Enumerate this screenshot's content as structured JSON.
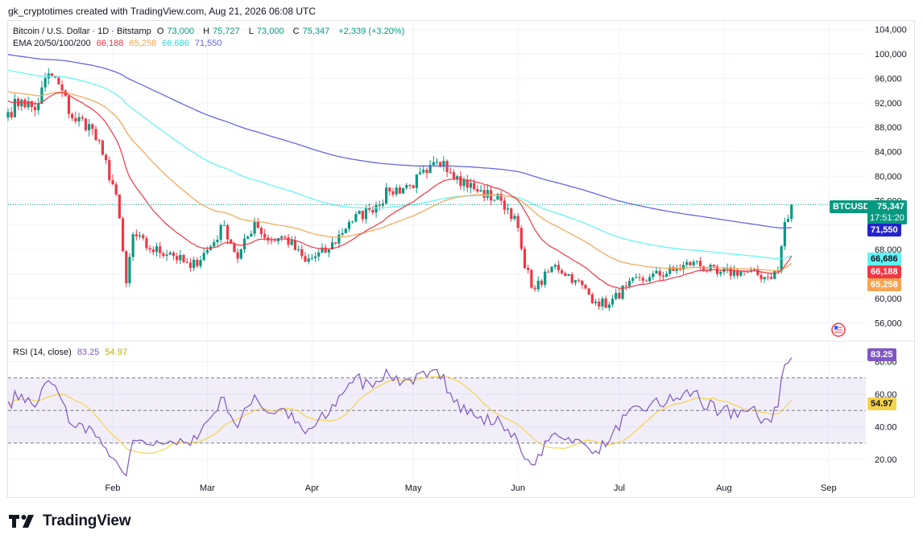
{
  "header": "gk_cryptotimes created with TradingView.com, Aug 21, 2026 06:08 UTC",
  "brand": "TradingView",
  "legend": {
    "symbol": "Bitcoin / U.S. Dollar · 1D · Bitstamp",
    "open_key": "O",
    "open": "73,000",
    "high_key": "H",
    "high": "75,727",
    "low_key": "L",
    "low": "73,000",
    "close_key": "C",
    "close": "75,347",
    "change": "+2,339 (+3.20%)",
    "ema_label": "EMA 20/50/100/200",
    "ema20": "66,188",
    "ema50": "65,258",
    "ema100": "66,686",
    "ema200": "71,550",
    "rsi_label": "RSI (14, close)",
    "rsi": "83.25",
    "rsi_ma": "54.97"
  },
  "tags": {
    "symbol": "BTCUSD",
    "price": "75,347",
    "countdown": "17:51:20",
    "ema200": "71,550",
    "ema100": "66,686",
    "ema20": "66,188",
    "ema50": "65,258",
    "rsi": "83.25",
    "rsi_ma": "54.97"
  },
  "colors": {
    "up": "#089981",
    "down": "#f23645",
    "ema20": "#f23645",
    "ema50": "#f7a350",
    "ema100": "#5ef4f4",
    "ema200": "#6666e8",
    "rsi": "#7e57c2",
    "rsi_ma": "#f5d34b",
    "grid": "#f0f3fa",
    "text": "#131722"
  },
  "chart_data": [
    {
      "type": "candlestick",
      "series_names": [
        "EMA 20",
        "EMA 50",
        "EMA 100",
        "EMA 200"
      ],
      "price_ticks": [
        "104,000",
        "100,000",
        "96,000",
        "92,000",
        "88,000",
        "84,000",
        "80,000",
        "76,000",
        "72,000",
        "68,000",
        "64,000",
        "60,000",
        "56,000"
      ],
      "ylim": [
        54000,
        105000
      ],
      "x_ticks": [
        "Feb",
        "Mar",
        "Apr",
        "May",
        "Jun",
        "Jul",
        "Aug",
        "Sep"
      ],
      "last_close": 75347,
      "anchors": [
        {
          "d": "2026-01-01",
          "c": 90500
        },
        {
          "d": "2026-01-05",
          "c": 92500
        },
        {
          "d": "2026-01-09",
          "c": 90800
        },
        {
          "d": "2026-01-13",
          "c": 96800
        },
        {
          "d": "2026-01-16",
          "c": 95000
        },
        {
          "d": "2026-01-20",
          "c": 89500
        },
        {
          "d": "2026-01-25",
          "c": 88500
        },
        {
          "d": "2026-01-29",
          "c": 83500
        },
        {
          "d": "2026-02-02",
          "c": 77000
        },
        {
          "d": "2026-02-05",
          "c": 62500
        },
        {
          "d": "2026-02-07",
          "c": 70500
        },
        {
          "d": "2026-02-12",
          "c": 68000
        },
        {
          "d": "2026-02-18",
          "c": 67500
        },
        {
          "d": "2026-02-24",
          "c": 65000
        },
        {
          "d": "2026-03-02",
          "c": 68500
        },
        {
          "d": "2026-03-06",
          "c": 72000
        },
        {
          "d": "2026-03-10",
          "c": 66500
        },
        {
          "d": "2026-03-15",
          "c": 72500
        },
        {
          "d": "2026-03-19",
          "c": 69500
        },
        {
          "d": "2026-03-24",
          "c": 70000
        },
        {
          "d": "2026-03-30",
          "c": 66000
        },
        {
          "d": "2026-04-06",
          "c": 68000
        },
        {
          "d": "2026-04-12",
          "c": 72500
        },
        {
          "d": "2026-04-18",
          "c": 74500
        },
        {
          "d": "2026-04-24",
          "c": 77500
        },
        {
          "d": "2026-04-30",
          "c": 78500
        },
        {
          "d": "2026-05-05",
          "c": 80500
        },
        {
          "d": "2026-05-10",
          "c": 82500
        },
        {
          "d": "2026-05-14",
          "c": 80000
        },
        {
          "d": "2026-05-20",
          "c": 77500
        },
        {
          "d": "2026-05-27",
          "c": 76000
        },
        {
          "d": "2026-05-31",
          "c": 73500
        },
        {
          "d": "2026-06-03",
          "c": 65000
        },
        {
          "d": "2026-06-06",
          "c": 61500
        },
        {
          "d": "2026-06-12",
          "c": 65500
        },
        {
          "d": "2026-06-18",
          "c": 63000
        },
        {
          "d": "2026-06-24",
          "c": 59500
        },
        {
          "d": "2026-06-28",
          "c": 59000
        },
        {
          "d": "2026-07-03",
          "c": 62000
        },
        {
          "d": "2026-07-10",
          "c": 63500
        },
        {
          "d": "2026-07-17",
          "c": 64500
        },
        {
          "d": "2026-07-23",
          "c": 66000
        },
        {
          "d": "2026-07-30",
          "c": 64000
        },
        {
          "d": "2026-08-06",
          "c": 64500
        },
        {
          "d": "2026-08-14",
          "c": 63500
        },
        {
          "d": "2026-08-17",
          "c": 64500
        },
        {
          "d": "2026-08-19",
          "c": 72500
        },
        {
          "d": "2026-08-20",
          "c": 73000
        },
        {
          "d": "2026-08-21",
          "c": 75347
        }
      ]
    },
    {
      "type": "line",
      "title": "RSI (14, close)",
      "series_names": [
        "RSI",
        "RSI MA"
      ],
      "rsi_ticks": [
        "80.00",
        "60.00",
        "40.00",
        "20.00"
      ],
      "ylim": [
        7,
        87
      ],
      "bands": [
        70,
        50,
        30
      ],
      "last_rsi": 83.25,
      "last_rsi_ma": 54.97
    }
  ]
}
